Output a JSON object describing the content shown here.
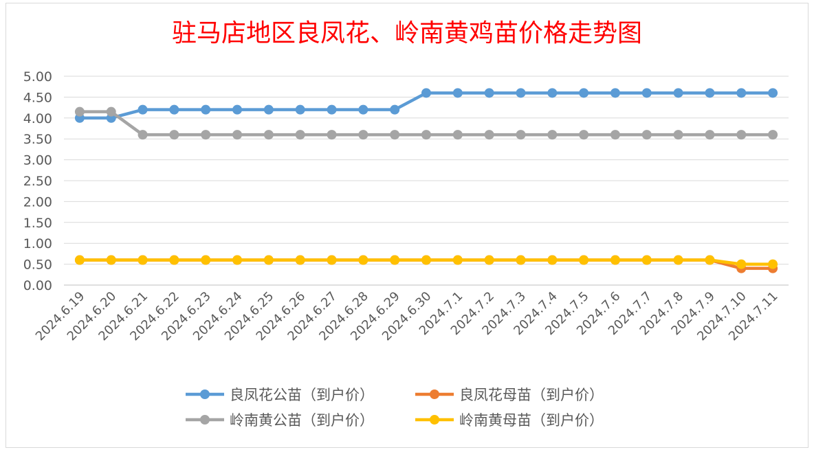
{
  "chart_data": {
    "type": "line",
    "title": "驻马店地区良凤花、岭南黄鸡苗价格走势图",
    "xlabel": "",
    "ylabel": "",
    "ylim": [
      0,
      5
    ],
    "ytick_labels": [
      "0.00",
      "0.50",
      "1.00",
      "1.50",
      "2.00",
      "2.50",
      "3.00",
      "3.50",
      "4.00",
      "4.50",
      "5.00"
    ],
    "categories": [
      "2024.6.19",
      "2024.6.20",
      "2024.6.21",
      "2024.6.22",
      "2024.6.23",
      "2024.6.24",
      "2024.6.25",
      "2024.6.26",
      "2024.6.27",
      "2024.6.28",
      "2024.6.29",
      "2024.6.30",
      "2024.7.1",
      "2024.7.2",
      "2024.7.3",
      "2024.7.4",
      "2024.7.5",
      "2024.7.6",
      "2024.7.7",
      "2024.7.8",
      "2024.7.9",
      "2024.7.10",
      "2024.7.11"
    ],
    "grid": true,
    "legend_position": "bottom",
    "series": [
      {
        "name": "良凤花公苗（到户价）",
        "color": "#5b9bd5",
        "values": [
          4.0,
          4.0,
          4.2,
          4.2,
          4.2,
          4.2,
          4.2,
          4.2,
          4.2,
          4.2,
          4.2,
          4.6,
          4.6,
          4.6,
          4.6,
          4.6,
          4.6,
          4.6,
          4.6,
          4.6,
          4.6,
          4.6,
          4.6
        ]
      },
      {
        "name": "良凤花母苗（到户价）",
        "color": "#ed7d31",
        "values": [
          0.6,
          0.6,
          0.6,
          0.6,
          0.6,
          0.6,
          0.6,
          0.6,
          0.6,
          0.6,
          0.6,
          0.6,
          0.6,
          0.6,
          0.6,
          0.6,
          0.6,
          0.6,
          0.6,
          0.6,
          0.6,
          0.4,
          0.4
        ]
      },
      {
        "name": "岭南黄公苗（到户价）",
        "color": "#a5a5a5",
        "values": [
          4.15,
          4.15,
          3.6,
          3.6,
          3.6,
          3.6,
          3.6,
          3.6,
          3.6,
          3.6,
          3.6,
          3.6,
          3.6,
          3.6,
          3.6,
          3.6,
          3.6,
          3.6,
          3.6,
          3.6,
          3.6,
          3.6,
          3.6
        ]
      },
      {
        "name": "岭南黄母苗（到户价）",
        "color": "#ffc000",
        "values": [
          0.6,
          0.6,
          0.6,
          0.6,
          0.6,
          0.6,
          0.6,
          0.6,
          0.6,
          0.6,
          0.6,
          0.6,
          0.6,
          0.6,
          0.6,
          0.6,
          0.6,
          0.6,
          0.6,
          0.6,
          0.6,
          0.5,
          0.5
        ]
      }
    ]
  }
}
